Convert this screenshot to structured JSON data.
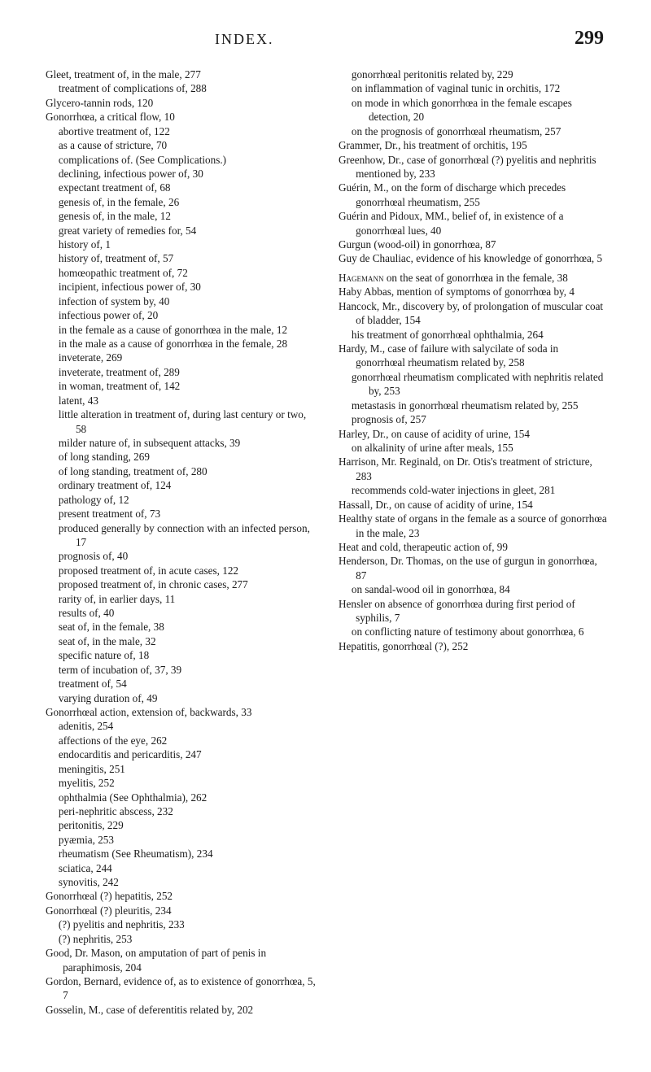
{
  "header": {
    "title": "INDEX.",
    "pageNumber": "299"
  },
  "entries": [
    {
      "cls": "entry",
      "text": "Gleet, treatment of, in the male, 277"
    },
    {
      "cls": "entry sub1",
      "text": "treatment of complications of, 288"
    },
    {
      "cls": "entry",
      "text": "Glycero-tannin rods, 120"
    },
    {
      "cls": "entry",
      "text": "Gonorrhœa, a critical flow, 10"
    },
    {
      "cls": "entry sub1",
      "text": "abortive treatment of, 122"
    },
    {
      "cls": "entry sub1",
      "text": "as a cause of stricture, 70"
    },
    {
      "cls": "entry sub1",
      "text": "complications of. (See Complications.)"
    },
    {
      "cls": "entry sub1",
      "text": "declining, infectious power of, 30"
    },
    {
      "cls": "entry sub1",
      "text": "expectant treatment of, 68"
    },
    {
      "cls": "entry sub1",
      "text": "genesis of, in the female, 26"
    },
    {
      "cls": "entry sub1",
      "text": "genesis of, in the male, 12"
    },
    {
      "cls": "entry sub1",
      "text": "great variety of remedies for, 54"
    },
    {
      "cls": "entry sub1",
      "text": "history of, 1"
    },
    {
      "cls": "entry sub1",
      "text": "history of, treatment of, 57"
    },
    {
      "cls": "entry sub1",
      "text": "homœopathic treatment of, 72"
    },
    {
      "cls": "entry sub1",
      "text": "incipient, infectious power of, 30"
    },
    {
      "cls": "entry sub1",
      "text": "infection of system by, 40"
    },
    {
      "cls": "entry sub1",
      "text": "infectious power of, 20"
    },
    {
      "cls": "entry sub1",
      "text": "in the female as a cause of gonorrhœa in the male, 12"
    },
    {
      "cls": "entry sub1",
      "text": "in the male as a cause of gonorrhœa in the female, 28"
    },
    {
      "cls": "entry sub1",
      "text": "inveterate, 269"
    },
    {
      "cls": "entry sub1",
      "text": "inveterate, treatment of, 289"
    },
    {
      "cls": "entry sub1",
      "text": "in woman, treatment of, 142"
    },
    {
      "cls": "entry sub1",
      "text": "latent, 43"
    },
    {
      "cls": "entry sub1",
      "text": "little alteration in treatment of, during last century or two, 58"
    },
    {
      "cls": "entry sub1",
      "text": "milder nature of, in subsequent attacks, 39"
    },
    {
      "cls": "entry sub1",
      "text": "of long standing, 269"
    },
    {
      "cls": "entry sub1",
      "text": "of long standing, treatment of, 280"
    },
    {
      "cls": "entry sub1",
      "text": "ordinary treatment of, 124"
    },
    {
      "cls": "entry sub1",
      "text": "pathology of, 12"
    },
    {
      "cls": "entry sub1",
      "text": "present treatment of, 73"
    },
    {
      "cls": "entry sub1",
      "text": "produced generally by connection with an infected person, 17"
    },
    {
      "cls": "entry sub1",
      "text": "prognosis of, 40"
    },
    {
      "cls": "entry sub1",
      "text": "proposed treatment of, in acute cases, 122"
    },
    {
      "cls": "entry sub1",
      "text": "proposed treatment of, in chronic cases, 277"
    },
    {
      "cls": "entry sub1",
      "text": "rarity of, in earlier days, 11"
    },
    {
      "cls": "entry sub1",
      "text": "results of, 40"
    },
    {
      "cls": "entry sub1",
      "text": "seat of, in the female, 38"
    },
    {
      "cls": "entry sub1",
      "text": "seat of, in the male, 32"
    },
    {
      "cls": "entry sub1",
      "text": "specific nature of, 18"
    },
    {
      "cls": "entry sub1",
      "text": "term of incubation of, 37, 39"
    },
    {
      "cls": "entry sub1",
      "text": "treatment of, 54"
    },
    {
      "cls": "entry sub1",
      "text": "varying duration of, 49"
    },
    {
      "cls": "entry",
      "text": "Gonorrhœal action, extension of, backwards, 33"
    },
    {
      "cls": "entry sub1",
      "text": "adenitis, 254"
    },
    {
      "cls": "entry sub1",
      "text": "affections of the eye, 262"
    },
    {
      "cls": "entry sub1",
      "text": "endocarditis and pericarditis, 247"
    },
    {
      "cls": "entry sub1",
      "text": "meningitis, 251"
    },
    {
      "cls": "entry sub1",
      "text": "myelitis, 252"
    },
    {
      "cls": "entry sub1",
      "text": "ophthalmia (See Ophthalmia), 262"
    },
    {
      "cls": "entry sub1",
      "text": "peri-nephritic abscess, 232"
    },
    {
      "cls": "entry sub1",
      "text": "peritonitis, 229"
    },
    {
      "cls": "entry sub1",
      "text": "pyæmia, 253"
    },
    {
      "cls": "entry sub1",
      "text": "rheumatism (See Rheumatism), 234"
    },
    {
      "cls": "entry sub1",
      "text": "sciatica, 244"
    },
    {
      "cls": "entry sub1",
      "text": "synovitis, 242"
    },
    {
      "cls": "entry",
      "text": "Gonorrhœal (?) hepatitis, 252"
    },
    {
      "cls": "entry",
      "text": "Gonorrhœal (?) pleuritis, 234"
    },
    {
      "cls": "entry sub1",
      "text": "(?) pyelitis and nephritis, 233"
    },
    {
      "cls": "entry sub1",
      "text": "(?) nephritis, 253"
    },
    {
      "cls": "entry",
      "text": "Good, Dr. Mason, on amputation of part of penis in paraphimosis, 204"
    },
    {
      "cls": "entry",
      "text": "Gordon, Bernard, evidence of, as to existence of gonorrhœa, 5, 7"
    },
    {
      "cls": "entry",
      "text": "Gosselin, M., case of deferentitis related by, 202"
    },
    {
      "cls": "entry sub1",
      "text": "gonorrhœal peritonitis related by, 229"
    },
    {
      "cls": "entry sub1",
      "text": "on inflammation of vaginal tunic in orchitis, 172"
    },
    {
      "cls": "entry sub1",
      "text": "on mode in which gonorrhœa in the female escapes detection, 20"
    },
    {
      "cls": "entry sub1",
      "text": "on the prognosis of gonorrhœal rheumatism, 257"
    },
    {
      "cls": "entry",
      "text": "Grammer, Dr., his treatment of orchitis, 195"
    },
    {
      "cls": "entry",
      "text": "Greenhow, Dr., case of gonorrhœal (?) pyelitis and nephritis mentioned by, 233"
    },
    {
      "cls": "entry",
      "text": "Guérin, M., on the form of discharge which precedes gonorrhœal rheumatism, 255"
    },
    {
      "cls": "entry",
      "text": "Guérin and Pidoux, MM., belief of, in existence of a gonorrhœal lues, 40"
    },
    {
      "cls": "entry",
      "text": "Gurgun (wood-oil) in gonorrhœa, 87"
    },
    {
      "cls": "entry",
      "text": "Guy de Chauliac, evidence of his knowledge of gonorrhœa, 5"
    },
    {
      "cls": "entry gap",
      "html": "<span class=\"sc\">Hagemann</span> on the seat of gonorrhœa in the female, 38"
    },
    {
      "cls": "entry",
      "text": "Haby Abbas, mention of symptoms of gonorrhœa by, 4"
    },
    {
      "cls": "entry",
      "text": "Hancock, Mr., discovery by, of prolongation of muscular coat of bladder, 154"
    },
    {
      "cls": "entry sub1",
      "text": "his treatment of gonorrhœal ophthalmia, 264"
    },
    {
      "cls": "entry",
      "text": "Hardy, M., case of failure with salycilate of soda in gonorrhœal rheumatism related by, 258"
    },
    {
      "cls": "entry sub1",
      "text": "gonorrhœal rheumatism complicated with nephritis related by, 253"
    },
    {
      "cls": "entry sub1",
      "text": "metastasis in gonorrhœal rheumatism related by, 255"
    },
    {
      "cls": "entry sub1",
      "text": "prognosis of, 257"
    },
    {
      "cls": "entry",
      "text": "Harley, Dr., on cause of acidity of urine, 154"
    },
    {
      "cls": "entry sub1",
      "text": "on alkalinity of urine after meals, 155"
    },
    {
      "cls": "entry",
      "text": "Harrison, Mr. Reginald, on Dr. Otis's treatment of stricture, 283"
    },
    {
      "cls": "entry sub1",
      "text": "recommends cold-water injections in gleet, 281"
    },
    {
      "cls": "entry",
      "text": "Hassall, Dr., on cause of acidity of urine, 154"
    },
    {
      "cls": "entry",
      "text": "Healthy state of organs in the female as a source of gonorrhœa in the male, 23"
    },
    {
      "cls": "entry",
      "text": "Heat and cold, therapeutic action of, 99"
    },
    {
      "cls": "entry",
      "text": "Henderson, Dr. Thomas, on the use of gurgun in gonorrhœa, 87"
    },
    {
      "cls": "entry sub1",
      "text": "on sandal-wood oil in gonorrhœa, 84"
    },
    {
      "cls": "entry",
      "text": "Hensler on absence of gonorrhœa during first period of syphilis, 7"
    },
    {
      "cls": "entry sub1",
      "text": "on conflicting nature of testimony about gonorrhœa, 6"
    },
    {
      "cls": "entry",
      "text": "Hepatitis, gonorrhœal (?), 252"
    }
  ]
}
